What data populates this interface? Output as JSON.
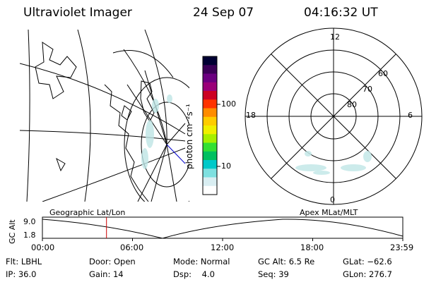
{
  "header": {
    "title": "Ultraviolet Imager",
    "date": "24 Sep 07",
    "time": "04:16:32 UT"
  },
  "colorbar": {
    "unit_label": "photon cm⁻²s⁻¹",
    "tick_100": "100",
    "tick_10": "10",
    "colors": [
      "#000033",
      "#3b0057",
      "#6b0080",
      "#9a0078",
      "#cc0022",
      "#ff3300",
      "#ff8c00",
      "#ffcc00",
      "#f0f000",
      "#a6f000",
      "#33e033",
      "#00c060",
      "#00c9c9",
      "#7ee0e0",
      "#d9eef2",
      "#ffffff"
    ]
  },
  "polar": {
    "mlt_labels": {
      "top": "12",
      "left": "18",
      "right": "6",
      "bottom": "0"
    },
    "lat_labels": [
      "60",
      "70",
      "80"
    ]
  },
  "timeline": {
    "left_label": "Geographic Lat/Lon",
    "right_label": "Apex MLat/MLT",
    "y_axis_label": "GC Alt",
    "y_max": "9.0",
    "y_min": "1.8",
    "current_time_marker_hours": 4.27,
    "x_ticks": [
      "00:00",
      "06:00",
      "12:00",
      "18:00",
      "23:59"
    ]
  },
  "info": {
    "col1": [
      "Flt: LBHL",
      "IP: 36.0"
    ],
    "col2": [
      "Door: Open",
      "Gain: 14"
    ],
    "col3": [
      "Mode: Normal",
      "Dsp:    4.0"
    ],
    "col4": [
      "GC Alt: 6.5 Re",
      "Seq: 39"
    ],
    "col5": [
      "GLat: −62.6",
      "GLon: 276.7"
    ]
  }
}
